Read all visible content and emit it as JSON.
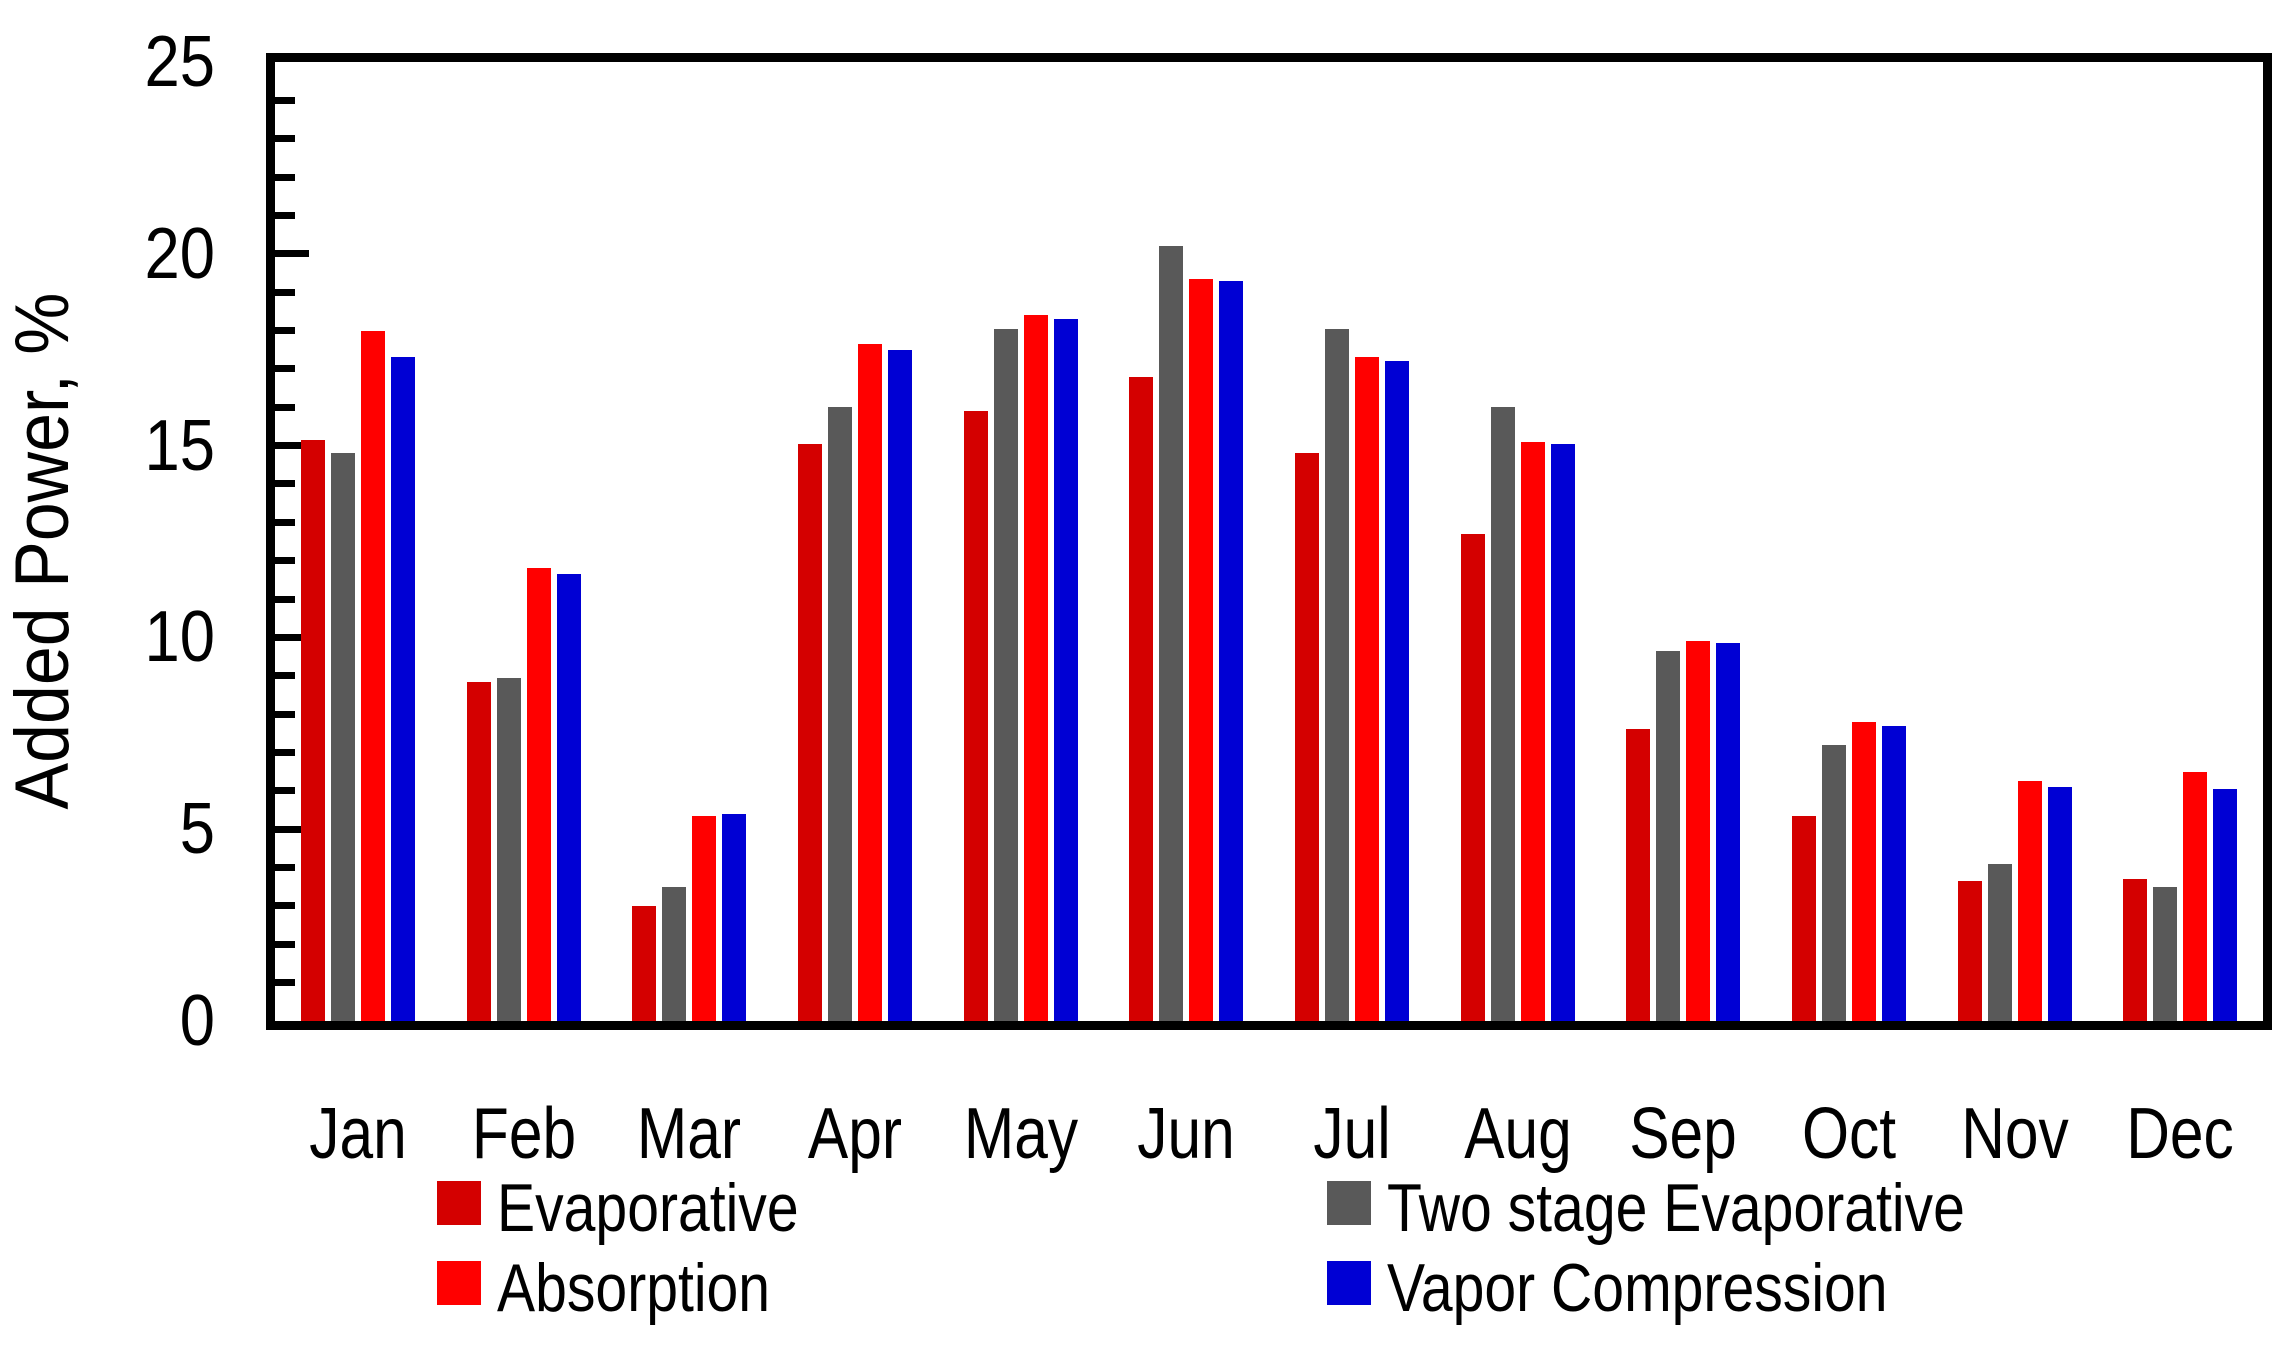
{
  "chart_data": {
    "type": "bar",
    "title": "",
    "xlabel": "",
    "ylabel": "Added Power, %",
    "ylim": [
      0,
      25
    ],
    "yticks_major": [
      0,
      5,
      10,
      15,
      20,
      25
    ],
    "ytick_labels": [
      "0",
      "5",
      "10",
      "15",
      "20",
      "25"
    ],
    "minor_tick_step": 1,
    "grid": false,
    "legend_position": "bottom",
    "categories": [
      "Jan",
      "Feb",
      "Mar",
      "Apr",
      "May",
      "Jun",
      "Jul",
      "Aug",
      "Sep",
      "Oct",
      "Nov",
      "Dec"
    ],
    "series": [
      {
        "name": "Evaporative",
        "color": "#D40000",
        "values": [
          15.15,
          8.85,
          3.0,
          15.05,
          15.9,
          16.8,
          14.8,
          12.7,
          7.6,
          5.35,
          3.65,
          3.7
        ]
      },
      {
        "name": "Two stage Evaporative",
        "color": "#595959",
        "values": [
          14.8,
          8.95,
          3.5,
          16.0,
          18.05,
          20.2,
          18.05,
          16.0,
          9.65,
          7.2,
          4.1,
          3.5
        ]
      },
      {
        "name": "Absorption",
        "color": "#FF0000",
        "values": [
          18.0,
          11.8,
          5.35,
          17.65,
          18.4,
          19.35,
          17.3,
          15.1,
          9.9,
          7.8,
          6.25,
          6.5
        ]
      },
      {
        "name": "Vapor Compression",
        "color": "#0000D4",
        "values": [
          17.3,
          11.65,
          5.4,
          17.5,
          18.3,
          19.3,
          17.2,
          15.05,
          9.85,
          7.7,
          6.1,
          6.05
        ]
      }
    ]
  },
  "legend": {
    "items": [
      {
        "label": "Evaporative",
        "color": "#D40000"
      },
      {
        "label": "Absorption",
        "color": "#FF0000"
      },
      {
        "label": "Two stage Evaporative",
        "color": "#595959"
      },
      {
        "label": "Vapor Compression",
        "color": "#0000D4"
      }
    ]
  },
  "colors": {
    "axis": "#000000",
    "background": "#FFFFFF"
  }
}
